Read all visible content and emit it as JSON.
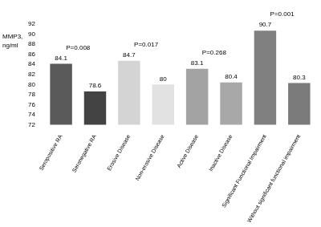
{
  "chart_data": {
    "type": "bar",
    "y_label": "MMP3, ng/ml",
    "categories": [
      "Seropositive RA",
      "Seronegative RA",
      "Erosive Disease",
      "Non-erosive Disease",
      "Active Disease",
      "Inactive Disease",
      "Significant Functional Impairment",
      "Without significant functional impairment"
    ],
    "values": [
      84.1,
      78.6,
      84.7,
      80,
      83.1,
      80.4,
      90.7,
      80.3
    ],
    "colors": [
      "#5a5a5a",
      "#434343",
      "#d4d4d4",
      "#e2e2e2",
      "#a3a3a3",
      "#a8a8a8",
      "#808080",
      "#7b7b7b"
    ],
    "ylim": [
      72,
      92
    ],
    "yticks": [
      72,
      74,
      76,
      78,
      80,
      82,
      84,
      86,
      88,
      90,
      92
    ],
    "grid": false,
    "data_labels": true,
    "annotations": [
      {
        "text": "P=0.008",
        "categories": [
          "Seropositive RA",
          "Seronegative RA"
        ]
      },
      {
        "text": "P=0.017",
        "categories": [
          "Erosive Disease",
          "Non-erosive Disease"
        ]
      },
      {
        "text": "P=0.268",
        "categories": [
          "Active Disease",
          "Inactive Disease"
        ]
      },
      {
        "text": "P=0.001",
        "categories": [
          "Significant Functional Impairment",
          "Without significant functional impairment"
        ]
      }
    ]
  }
}
